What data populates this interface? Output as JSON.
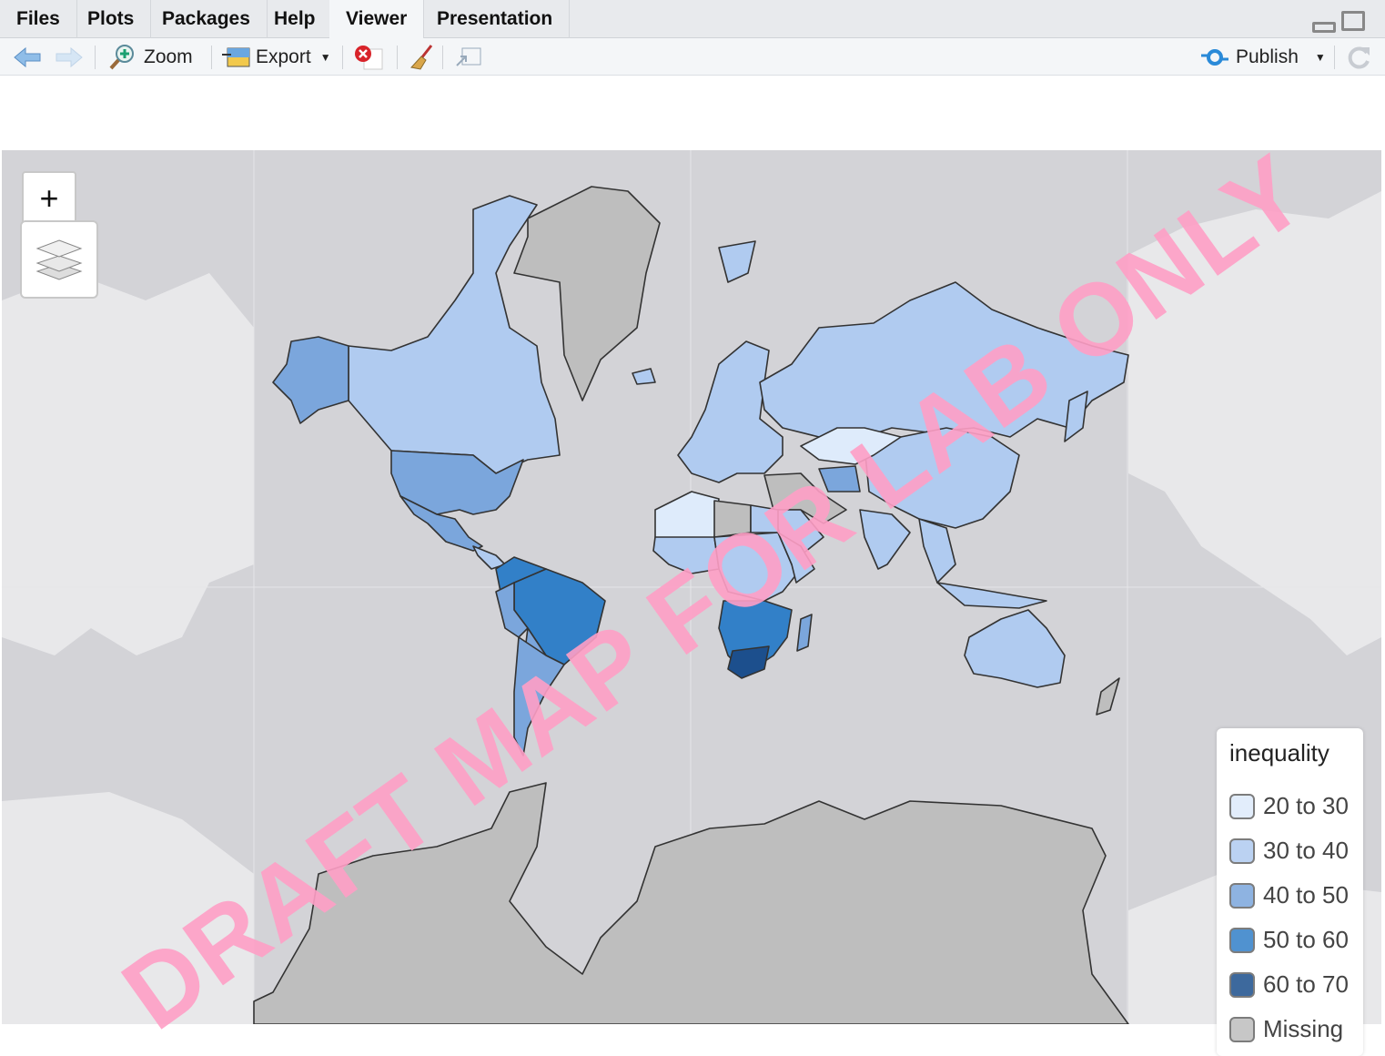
{
  "tabs": [
    {
      "label": "Files"
    },
    {
      "label": "Plots"
    },
    {
      "label": "Packages"
    },
    {
      "label": "Help"
    },
    {
      "label": "Viewer",
      "active": true
    },
    {
      "label": "Presentation"
    }
  ],
  "toolbar": {
    "zoom_label": "Zoom",
    "export_label": "Export",
    "publish_label": "Publish"
  },
  "map": {
    "zoom_in": "+",
    "zoom_out": "−",
    "watermark": "DRAFT MAP FOR LAB ONLY",
    "ocean_color": "#d3d3d7",
    "basemap_land_color": "#e8e8ea",
    "legend": {
      "title": "inequality",
      "items": [
        {
          "label": "20 to 30",
          "color": "#deebfb"
        },
        {
          "label": "30 to 40",
          "color": "#b0cbf0"
        },
        {
          "label": "40 to 50",
          "color": "#7ba6dc"
        },
        {
          "label": "50 to 60",
          "color": "#3280c8"
        },
        {
          "label": "60 to 70",
          "color": "#1c4f8d"
        },
        {
          "label": "Missing",
          "color": "#bebebe"
        }
      ]
    }
  }
}
